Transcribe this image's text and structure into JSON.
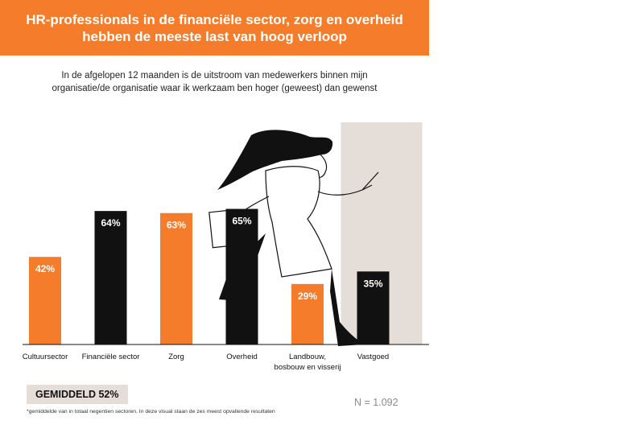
{
  "header": {
    "title_line1": "HR-professionals in de financiële sector, zorg en overheid",
    "title_line2": "hebben de meeste last van hoog verloop"
  },
  "subtitle": {
    "line1": "In de afgelopen 12 maanden is de uitstroom van medewerkers binnen mijn",
    "line2": "organisatie/de organisatie waar ik werkzaam ben hoger (geweest) dan gewenst"
  },
  "chart_data": {
    "type": "bar",
    "categories": [
      [
        "Cultuursector"
      ],
      [
        "Financiële sector"
      ],
      [
        "Zorg"
      ],
      [
        "Overheid"
      ],
      [
        "Landbouw,",
        "bosbouw en visserij"
      ],
      [
        "Vastgoed"
      ]
    ],
    "values": [
      42,
      64,
      63,
      65,
      29,
      35
    ],
    "value_labels": [
      "42%",
      "64%",
      "63%",
      "65%",
      "29%",
      "35%"
    ],
    "bar_colors": [
      "#f47c2a",
      "#111111",
      "#f47c2a",
      "#111111",
      "#f47c2a",
      "#111111"
    ],
    "ylim": [
      0,
      100
    ],
    "grid": false,
    "highlight_band": "Vastgoed",
    "band_color": "#e4ddd8"
  },
  "footer": {
    "average_label": "GEMIDDELD 52%",
    "sample_size": "N = 1.092",
    "footnote": "*gemiddelde van in totaal negentien sectoren. In deze visual staan de zes meest opvallende resultaten"
  },
  "colors": {
    "orange": "#f47c2a",
    "black": "#111111",
    "beige": "#e4ddd8"
  }
}
